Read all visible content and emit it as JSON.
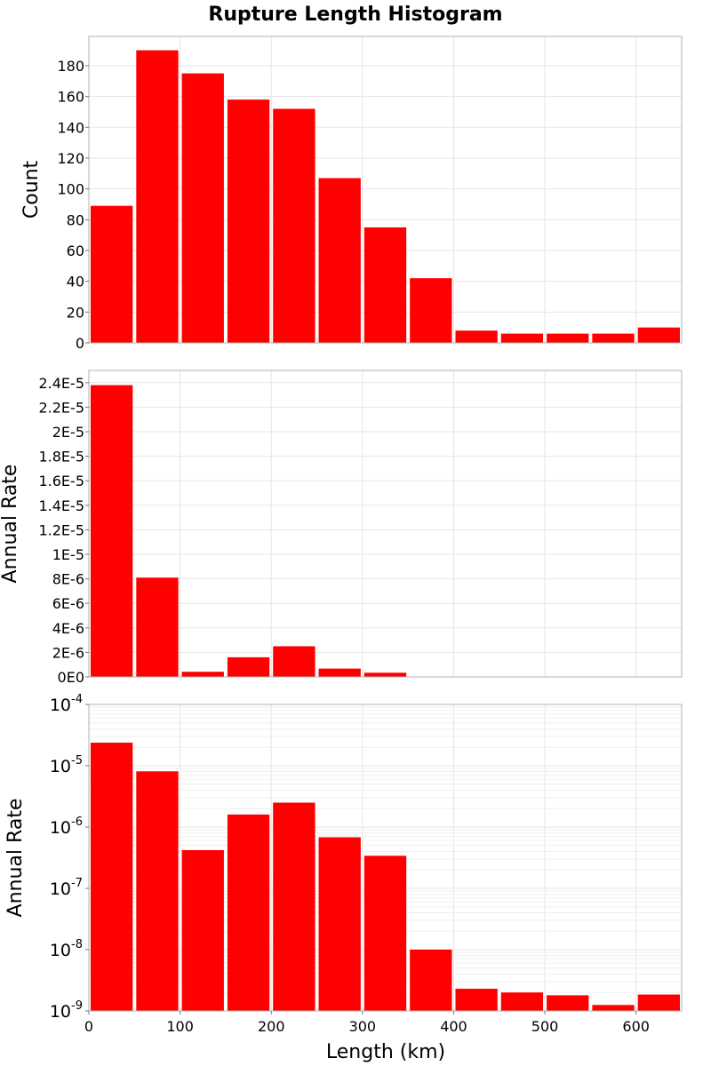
{
  "chart_data": {
    "title": "Rupture Length Histogram",
    "type": "bar",
    "xlabel": "Length (km)",
    "x_ticks": [
      "0",
      "100",
      "200",
      "300",
      "400",
      "500",
      "600"
    ],
    "xlim": [
      0,
      650
    ],
    "bin_width": 50,
    "bin_starts": [
      0,
      50,
      100,
      150,
      200,
      250,
      300,
      350,
      400,
      450,
      500,
      550,
      600
    ],
    "bar_color": "#ff0000",
    "grid": true,
    "panels": [
      {
        "id": "count",
        "ylabel": "Count",
        "scale": "linear",
        "ylim": [
          0,
          199
        ],
        "y_ticks": [
          {
            "v": 0,
            "label": "0"
          },
          {
            "v": 20,
            "label": "20"
          },
          {
            "v": 40,
            "label": "40"
          },
          {
            "v": 60,
            "label": "60"
          },
          {
            "v": 80,
            "label": "80"
          },
          {
            "v": 100,
            "label": "100"
          },
          {
            "v": 120,
            "label": "120"
          },
          {
            "v": 140,
            "label": "140"
          },
          {
            "v": 160,
            "label": "160"
          },
          {
            "v": 180,
            "label": "180"
          }
        ],
        "values": [
          89,
          190,
          175,
          158,
          152,
          107,
          75,
          42,
          8,
          6,
          6,
          6,
          10
        ]
      },
      {
        "id": "rate-linear",
        "ylabel": "Annual Rate",
        "scale": "linear",
        "ylim": [
          0,
          2.5e-05
        ],
        "y_ticks": [
          {
            "v": 0,
            "label": "0E0"
          },
          {
            "v": 2e-06,
            "label": "2E-6"
          },
          {
            "v": 4e-06,
            "label": "4E-6"
          },
          {
            "v": 6e-06,
            "label": "6E-6"
          },
          {
            "v": 8e-06,
            "label": "8E-6"
          },
          {
            "v": 1e-05,
            "label": "1E-5"
          },
          {
            "v": 1.2e-05,
            "label": "1.2E-5"
          },
          {
            "v": 1.4e-05,
            "label": "1.4E-5"
          },
          {
            "v": 1.6e-05,
            "label": "1.6E-5"
          },
          {
            "v": 1.8e-05,
            "label": "1.8E-5"
          },
          {
            "v": 2e-05,
            "label": "2E-5"
          },
          {
            "v": 2.2e-05,
            "label": "2.2E-5"
          },
          {
            "v": 2.4e-05,
            "label": "2.4E-5"
          }
        ],
        "values": [
          2.38e-05,
          8.1e-06,
          4.2e-07,
          1.6e-06,
          2.5e-06,
          6.8e-07,
          3.4e-07,
          1e-08,
          2.3e-09,
          2e-09,
          1.8e-09,
          1.25e-09,
          1.85e-09
        ]
      },
      {
        "id": "rate-log",
        "ylabel": "Annual Rate",
        "scale": "log",
        "ylim": [
          1e-09,
          0.0001
        ],
        "y_ticks": [
          {
            "v": 1e-09,
            "base": "10",
            "exp": "-9"
          },
          {
            "v": 1e-08,
            "base": "10",
            "exp": "-8"
          },
          {
            "v": 1e-07,
            "base": "10",
            "exp": "-7"
          },
          {
            "v": 1e-06,
            "base": "10",
            "exp": "-6"
          },
          {
            "v": 1e-05,
            "base": "10",
            "exp": "-5"
          },
          {
            "v": 0.0001,
            "base": "10",
            "exp": "-4"
          }
        ],
        "values": [
          2.38e-05,
          8.1e-06,
          4.2e-07,
          1.6e-06,
          2.5e-06,
          6.8e-07,
          3.4e-07,
          1e-08,
          2.3e-09,
          2e-09,
          1.8e-09,
          1.25e-09,
          1.85e-09
        ]
      }
    ]
  }
}
